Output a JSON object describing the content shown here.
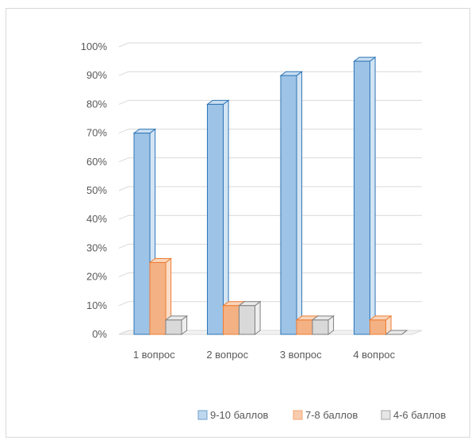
{
  "chart_data": {
    "type": "bar",
    "title": "",
    "xlabel": "",
    "ylabel": "",
    "ylim": [
      0,
      100
    ],
    "y_ticks": [
      "0%",
      "10%",
      "20%",
      "30%",
      "40%",
      "50%",
      "60%",
      "70%",
      "80%",
      "90%",
      "100%"
    ],
    "categories": [
      "1 вопрос",
      "2 вопрос",
      "3 вопрос",
      "4 вопрос"
    ],
    "series": [
      {
        "name": "9-10 баллов",
        "values": [
          70,
          80,
          90,
          95
        ],
        "color": "#9DC3E6",
        "stroke": "#2E75B6"
      },
      {
        "name": "7-8 баллов",
        "values": [
          25,
          10,
          5,
          5
        ],
        "color": "#F4B183",
        "stroke": "#ED7D31"
      },
      {
        "name": "4-6 баллов",
        "values": [
          5,
          10,
          5,
          0
        ],
        "color": "#D9D9D9",
        "stroke": "#7F7F7F"
      }
    ],
    "grid": true,
    "legend_position": "bottom-right"
  }
}
